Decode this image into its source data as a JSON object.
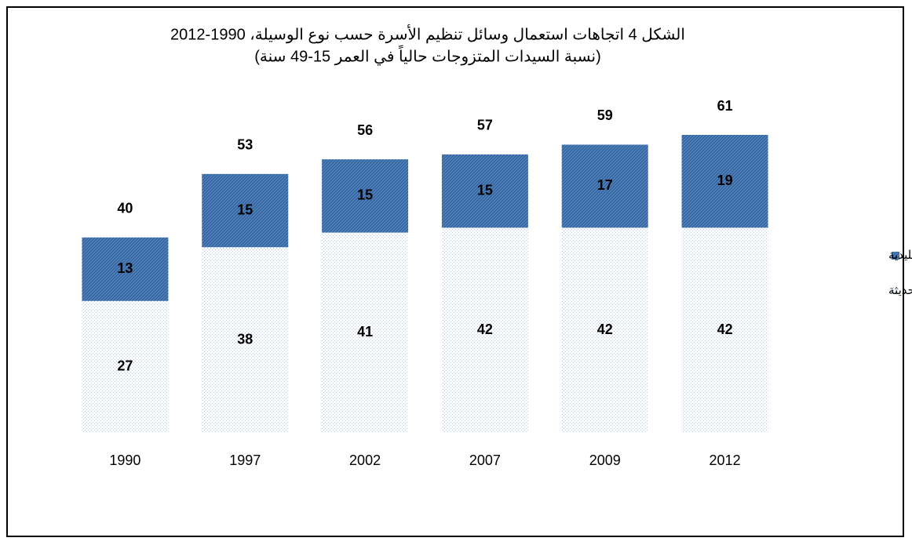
{
  "chart_data": {
    "type": "stacked-bar",
    "title": "الشكل 4 اتجاهات استعمال وسائل تنظيم الأسرة حسب نوع الوسيلة، 1990-2012",
    "subtitle": "(نسبة السيدات المتزوجات حالياً في العمر 15-49 سنة)",
    "categories": [
      "1990",
      "1997",
      "2002",
      "2007",
      "2009",
      "2012"
    ],
    "series": [
      {
        "name": "الوسائل الحديثة",
        "color": "#b3c3dd",
        "values": [
          27,
          38,
          41,
          42,
          42,
          42
        ]
      },
      {
        "name": "الوسائل التقليدية",
        "color": "#4f81bd",
        "values": [
          13,
          15,
          15,
          15,
          17,
          19
        ]
      }
    ],
    "totals": [
      40,
      53,
      56,
      57,
      59,
      61
    ]
  }
}
